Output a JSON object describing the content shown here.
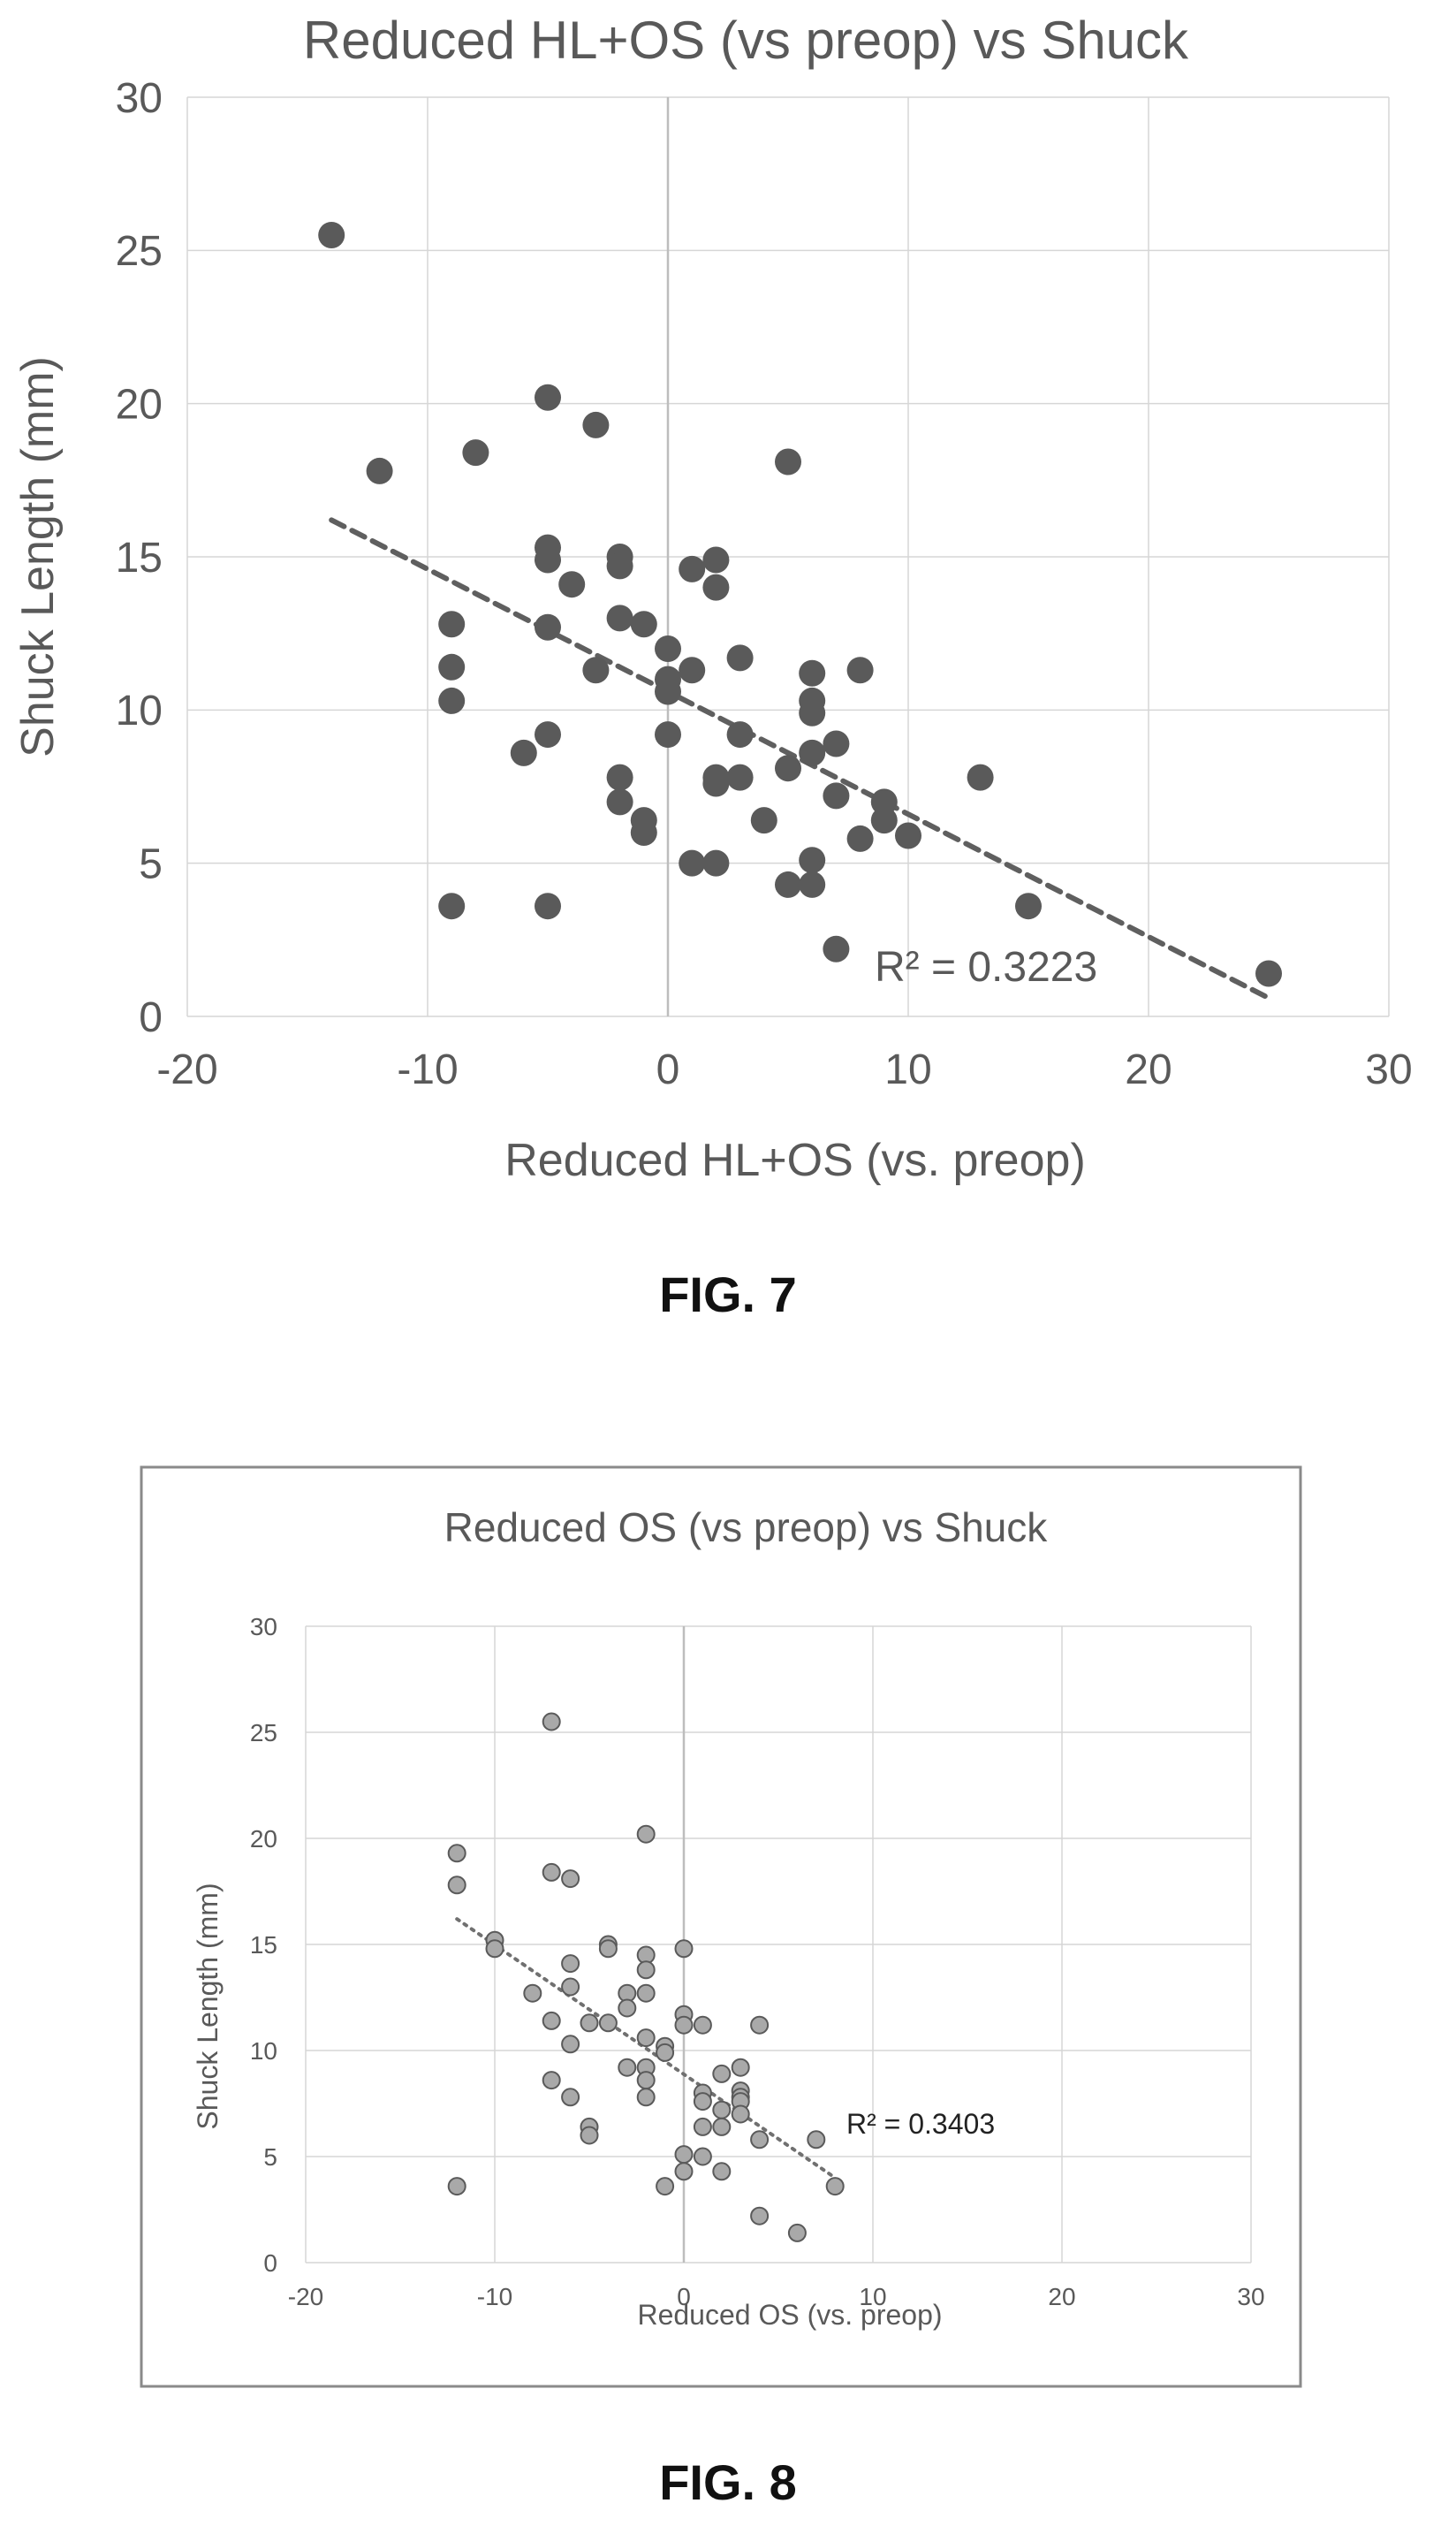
{
  "figures": [
    {
      "caption": "FIG. 7"
    },
    {
      "caption": "FIG. 8"
    }
  ],
  "colors": {
    "fig7_point": "#5a5a5a",
    "fig7_trend": "#5f5f5f",
    "fig8_point_fill": "#a9a9a9",
    "fig8_point_stroke": "#5a5a5a",
    "fig8_trend": "#707070",
    "grid": "#d6d6d6",
    "text": "#595959"
  },
  "chart_data": [
    {
      "type": "scatter",
      "title": "Reduced HL+OS (vs preop) vs Shuck",
      "xlabel": "Reduced HL+OS (vs. preop)",
      "ylabel": "Shuck Length (mm)",
      "xlim": [
        -20,
        30
      ],
      "ylim": [
        0,
        30
      ],
      "xticks": [
        "-20",
        "-10",
        "0",
        "10",
        "20",
        "30"
      ],
      "yticks": [
        "0",
        "5",
        "10",
        "15",
        "20",
        "25",
        "30"
      ],
      "grid": true,
      "trendline": {
        "type": "linear",
        "x": [
          -14,
          25
        ],
        "y": [
          16.2,
          0.6
        ],
        "style": "dashed"
      },
      "r2_label": "R² = 0.3223",
      "points": [
        [
          -14,
          25.5
        ],
        [
          -12,
          17.8
        ],
        [
          -8,
          18.4
        ],
        [
          -5,
          20.2
        ],
        [
          -3,
          19.3
        ],
        [
          5,
          18.1
        ],
        [
          -9,
          12.8
        ],
        [
          -9,
          11.4
        ],
        [
          -9,
          10.3
        ],
        [
          -9,
          3.6
        ],
        [
          -6,
          8.6
        ],
        [
          -5,
          15.3
        ],
        [
          -5,
          14.9
        ],
        [
          -5,
          12.7
        ],
        [
          -5,
          9.2
        ],
        [
          -5,
          3.6
        ],
        [
          -4,
          14.1
        ],
        [
          -3,
          11.3
        ],
        [
          -2,
          15.0
        ],
        [
          -2,
          14.7
        ],
        [
          -2,
          13.0
        ],
        [
          -2,
          7.8
        ],
        [
          -2,
          7.0
        ],
        [
          -1,
          12.8
        ],
        [
          -1,
          6.4
        ],
        [
          -1,
          6.0
        ],
        [
          0,
          12.0
        ],
        [
          0,
          11.0
        ],
        [
          0,
          10.6
        ],
        [
          0,
          9.2
        ],
        [
          1,
          14.6
        ],
        [
          1,
          11.3
        ],
        [
          1,
          5.0
        ],
        [
          2,
          14.9
        ],
        [
          2,
          14.0
        ],
        [
          2,
          7.8
        ],
        [
          2,
          7.6
        ],
        [
          2,
          5.0
        ],
        [
          3,
          11.7
        ],
        [
          3,
          9.2
        ],
        [
          3,
          7.8
        ],
        [
          4,
          6.4
        ],
        [
          5,
          8.1
        ],
        [
          5,
          4.3
        ],
        [
          6,
          11.2
        ],
        [
          6,
          10.3
        ],
        [
          6,
          9.9
        ],
        [
          6,
          8.6
        ],
        [
          6,
          5.1
        ],
        [
          6,
          4.3
        ],
        [
          7,
          8.9
        ],
        [
          7,
          7.2
        ],
        [
          7,
          2.2
        ],
        [
          8,
          11.3
        ],
        [
          8,
          5.8
        ],
        [
          9,
          7.0
        ],
        [
          9,
          6.4
        ],
        [
          10,
          5.9
        ],
        [
          13,
          7.8
        ],
        [
          15,
          3.6
        ],
        [
          25,
          1.4
        ]
      ]
    },
    {
      "type": "scatter",
      "title": "Reduced OS (vs preop) vs Shuck",
      "xlabel": "Reduced OS (vs. preop)",
      "ylabel": "Shuck Length (mm)",
      "xlim": [
        -20,
        30
      ],
      "ylim": [
        0,
        30
      ],
      "xticks": [
        "-20",
        "-10",
        "0",
        "10",
        "20",
        "30"
      ],
      "yticks": [
        "0",
        "5",
        "10",
        "15",
        "20",
        "25",
        "30"
      ],
      "grid": true,
      "trendline": {
        "type": "linear",
        "x": [
          -12,
          8
        ],
        "y": [
          16.2,
          4.0
        ],
        "style": "dotted"
      },
      "r2_label": "R² = 0.3403",
      "points": [
        [
          -12,
          19.3
        ],
        [
          -12,
          17.8
        ],
        [
          -12,
          3.6
        ],
        [
          -7,
          25.5
        ],
        [
          -7,
          18.4
        ],
        [
          -6,
          18.1
        ],
        [
          -10,
          15.2
        ],
        [
          -10,
          14.8
        ],
        [
          -8,
          12.7
        ],
        [
          -7,
          11.4
        ],
        [
          -7,
          8.6
        ],
        [
          -6,
          14.1
        ],
        [
          -6,
          13.0
        ],
        [
          -6,
          10.3
        ],
        [
          -6,
          7.8
        ],
        [
          -5,
          11.3
        ],
        [
          -5,
          6.4
        ],
        [
          -5,
          6.0
        ],
        [
          -4,
          15.0
        ],
        [
          -4,
          14.8
        ],
        [
          -4,
          11.3
        ],
        [
          -3,
          12.7
        ],
        [
          -3,
          12.0
        ],
        [
          -3,
          9.2
        ],
        [
          -2,
          20.2
        ],
        [
          -2,
          14.5
        ],
        [
          -2,
          13.8
        ],
        [
          -2,
          12.7
        ],
        [
          -2,
          10.6
        ],
        [
          -2,
          9.2
        ],
        [
          -2,
          8.6
        ],
        [
          -2,
          7.8
        ],
        [
          -1,
          10.2
        ],
        [
          -1,
          9.9
        ],
        [
          -1,
          3.6
        ],
        [
          0,
          14.8
        ],
        [
          0,
          11.7
        ],
        [
          0,
          11.2
        ],
        [
          0,
          5.1
        ],
        [
          0,
          4.3
        ],
        [
          1,
          11.2
        ],
        [
          1,
          8.0
        ],
        [
          1,
          7.6
        ],
        [
          1,
          6.4
        ],
        [
          1,
          5.0
        ],
        [
          2,
          8.9
        ],
        [
          2,
          7.2
        ],
        [
          2,
          6.4
        ],
        [
          2,
          4.3
        ],
        [
          3,
          9.2
        ],
        [
          3,
          8.1
        ],
        [
          3,
          7.8
        ],
        [
          3,
          7.6
        ],
        [
          3,
          7.0
        ],
        [
          4,
          11.2
        ],
        [
          4,
          5.8
        ],
        [
          4,
          2.2
        ],
        [
          6,
          1.4
        ],
        [
          7,
          5.8
        ],
        [
          8,
          3.6
        ]
      ]
    }
  ]
}
